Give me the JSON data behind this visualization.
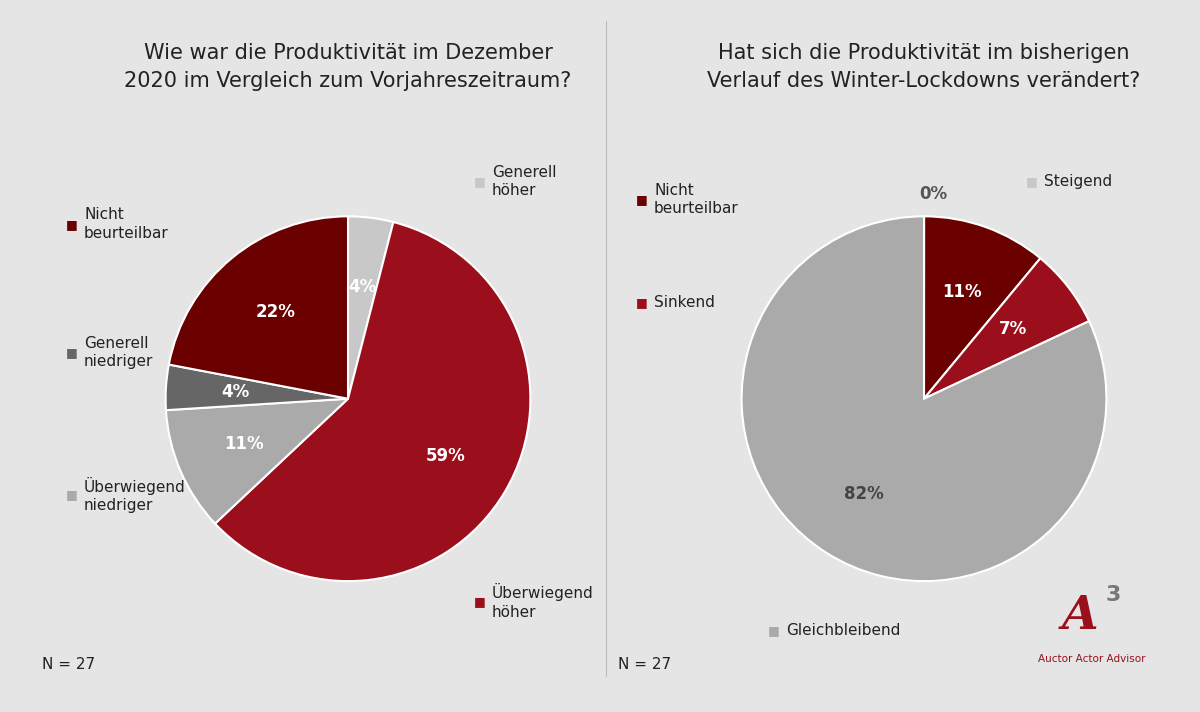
{
  "background_color": "#e5e5e5",
  "left_title": "Wie war die Produktivität im Dezember\n2020 im Vergleich zum Vorjahreszeitraum?",
  "right_title": "Hat sich die Produktivität im bisherigen\nVerlauf des Winter-Lockdowns verändert?",
  "n_label": "N = 27",
  "pie1_values": [
    4,
    59,
    11,
    4,
    22
  ],
  "pie1_colors": [
    "#c8c8c8",
    "#9b0e1c",
    "#aaaaaa",
    "#666666",
    "#6b0000"
  ],
  "pie1_pct_labels": [
    "4%",
    "59%",
    "11%",
    "4%",
    "22%"
  ],
  "pie1_startangle": 90,
  "pie2_values": [
    0.01,
    11,
    7,
    82
  ],
  "pie2_colors": [
    "#c8c8c8",
    "#6b0000",
    "#9b0e1c",
    "#aaaaaa"
  ],
  "pie2_pct_labels": [
    "0%",
    "11%",
    "7%",
    "82%"
  ],
  "pie2_startangle": 90,
  "font_color": "#222222",
  "title_fontsize": 15,
  "label_fontsize": 11,
  "pct_fontsize": 12,
  "logo_color": "#9b0e1c",
  "logo_sup_color": "#777777"
}
